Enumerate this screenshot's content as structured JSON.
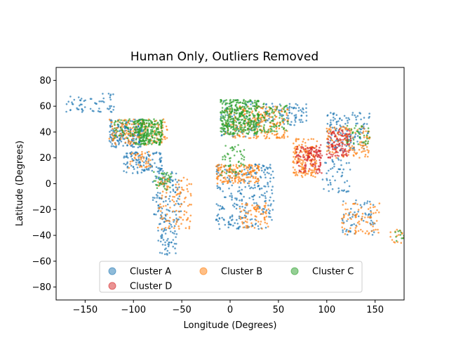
{
  "chart_data": {
    "type": "scatter",
    "title": "Human Only, Outliers Removed",
    "xlabel": "Longitude (Degrees)",
    "ylabel": "Latitude (Degrees)",
    "xlim": [
      -180,
      180
    ],
    "ylim": [
      -90,
      90
    ],
    "x_ticks": [
      -150,
      -100,
      -50,
      0,
      50,
      100,
      150
    ],
    "x_tick_labels": [
      "−150",
      "−100",
      "−50",
      "0",
      "50",
      "100",
      "150"
    ],
    "y_ticks": [
      80,
      60,
      40,
      20,
      0,
      -20,
      -40,
      -60,
      -80
    ],
    "y_tick_labels": [
      "80",
      "60",
      "40",
      "20",
      "0",
      "−20",
      "−40",
      "−60",
      "−80"
    ],
    "grid": false,
    "legend_position": "lower center",
    "series": [
      {
        "name": "Cluster A",
        "color": "#1f77b4",
        "regions": [
          {
            "lon": [
              -170,
              -120
            ],
            "lat": [
              55,
              70
            ],
            "n": 60
          },
          {
            "lon": [
              -125,
              -90
            ],
            "lat": [
              28,
              50
            ],
            "n": 170
          },
          {
            "lon": [
              -110,
              -70
            ],
            "lat": [
              8,
              25
            ],
            "n": 110
          },
          {
            "lon": [
              -80,
              -50
            ],
            "lat": [
              -30,
              10
            ],
            "n": 110
          },
          {
            "lon": [
              -75,
              -55
            ],
            "lat": [
              -55,
              -30
            ],
            "n": 55
          },
          {
            "lon": [
              -15,
              45
            ],
            "lat": [
              -35,
              15
            ],
            "n": 260
          },
          {
            "lon": [
              -10,
              40
            ],
            "lat": [
              35,
              65
            ],
            "n": 70
          },
          {
            "lon": [
              40,
              80
            ],
            "lat": [
              45,
              62
            ],
            "n": 70
          },
          {
            "lon": [
              100,
              145
            ],
            "lat": [
              25,
              55
            ],
            "n": 130
          },
          {
            "lon": [
              95,
              125
            ],
            "lat": [
              -8,
              20
            ],
            "n": 50
          },
          {
            "lon": [
              115,
              150
            ],
            "lat": [
              -40,
              -12
            ],
            "n": 60
          }
        ]
      },
      {
        "name": "Cluster B",
        "color": "#ff7f0e",
        "regions": [
          {
            "lon": [
              -125,
              -65
            ],
            "lat": [
              30,
              50
            ],
            "n": 170
          },
          {
            "lon": [
              -105,
              -80
            ],
            "lat": [
              12,
              25
            ],
            "n": 40
          },
          {
            "lon": [
              -75,
              -40
            ],
            "lat": [
              -35,
              5
            ],
            "n": 110
          },
          {
            "lon": [
              -15,
              30
            ],
            "lat": [
              0,
              15
            ],
            "n": 160
          },
          {
            "lon": [
              10,
              40
            ],
            "lat": [
              -35,
              -15
            ],
            "n": 70
          },
          {
            "lon": [
              -5,
              60
            ],
            "lat": [
              35,
              60
            ],
            "n": 230
          },
          {
            "lon": [
              65,
              90
            ],
            "lat": [
              5,
              35
            ],
            "n": 150
          },
          {
            "lon": [
              100,
              145
            ],
            "lat": [
              20,
              45
            ],
            "n": 120
          },
          {
            "lon": [
              115,
              155
            ],
            "lat": [
              -40,
              -15
            ],
            "n": 80
          },
          {
            "lon": [
              165,
              180
            ],
            "lat": [
              -46,
              -35
            ],
            "n": 15
          }
        ]
      },
      {
        "name": "Cluster C",
        "color": "#2ca02c",
        "regions": [
          {
            "lon": [
              -100,
              -70
            ],
            "lat": [
              30,
              50
            ],
            "n": 260
          },
          {
            "lon": [
              -120,
              -100
            ],
            "lat": [
              35,
              50
            ],
            "n": 40
          },
          {
            "lon": [
              -80,
              -60
            ],
            "lat": [
              -5,
              10
            ],
            "n": 40
          },
          {
            "lon": [
              -10,
              30
            ],
            "lat": [
              38,
              65
            ],
            "n": 380
          },
          {
            "lon": [
              30,
              60
            ],
            "lat": [
              40,
              62
            ],
            "n": 80
          },
          {
            "lon": [
              -10,
              15
            ],
            "lat": [
              5,
              30
            ],
            "n": 50
          },
          {
            "lon": [
              120,
              145
            ],
            "lat": [
              30,
              45
            ],
            "n": 40
          },
          {
            "lon": [
              170,
              180
            ],
            "lat": [
              -45,
              -35
            ],
            "n": 10
          }
        ]
      },
      {
        "name": "Cluster D",
        "color": "#d62728",
        "regions": [
          {
            "lon": [
              68,
              95
            ],
            "lat": [
              8,
              30
            ],
            "n": 90
          },
          {
            "lon": [
              100,
              125
            ],
            "lat": [
              20,
              42
            ],
            "n": 110
          },
          {
            "lon": [
              80,
              95
            ],
            "lat": [
              20,
              28
            ],
            "n": 40
          }
        ]
      }
    ]
  }
}
